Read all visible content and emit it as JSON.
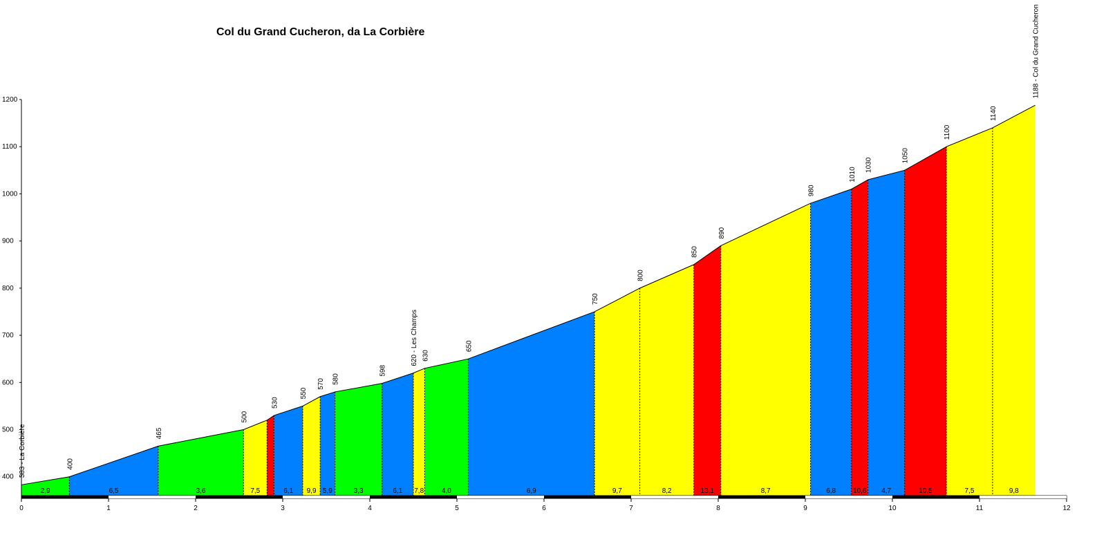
{
  "chart_data": {
    "type": "area",
    "title": "Col du Grand Cucheron, da La Corbière",
    "xlabel": "",
    "ylabel": "",
    "xlim": [
      0,
      12
    ],
    "ylim": [
      360,
      1200
    ],
    "x_ticks": [
      0,
      1,
      2,
      3,
      4,
      5,
      6,
      7,
      8,
      9,
      10,
      11,
      12
    ],
    "y_ticks": [
      400,
      500,
      600,
      700,
      800,
      900,
      1000,
      1100,
      1200
    ],
    "grid": false,
    "legend": "none",
    "colors": {
      "green": "#00ff00",
      "blue": "#0080ff",
      "yellow": "#ffff00",
      "red": "#ff0000",
      "outline": "#000000"
    },
    "profile_points": [
      {
        "x": 0.0,
        "y": 383,
        "label": "383 - La Corbière"
      },
      {
        "x": 0.55,
        "y": 400,
        "label": "400"
      },
      {
        "x": 1.57,
        "y": 465,
        "label": "465"
      },
      {
        "x": 2.55,
        "y": 500,
        "label": "500"
      },
      {
        "x": 2.82,
        "y": 520,
        "label": ""
      },
      {
        "x": 2.9,
        "y": 530,
        "label": "530"
      },
      {
        "x": 3.23,
        "y": 550,
        "label": "550"
      },
      {
        "x": 3.43,
        "y": 570,
        "label": "570"
      },
      {
        "x": 3.6,
        "y": 580,
        "label": "580"
      },
      {
        "x": 4.14,
        "y": 598,
        "label": "598"
      },
      {
        "x": 4.5,
        "y": 620,
        "label": "620 - Les Champs"
      },
      {
        "x": 4.63,
        "y": 630,
        "label": "630"
      },
      {
        "x": 5.13,
        "y": 650,
        "label": "650"
      },
      {
        "x": 6.58,
        "y": 750,
        "label": "750"
      },
      {
        "x": 7.1,
        "y": 800,
        "label": "800"
      },
      {
        "x": 7.72,
        "y": 850,
        "label": "850"
      },
      {
        "x": 8.03,
        "y": 890,
        "label": "890"
      },
      {
        "x": 9.06,
        "y": 980,
        "label": "980"
      },
      {
        "x": 9.53,
        "y": 1010,
        "label": "1010"
      },
      {
        "x": 9.72,
        "y": 1030,
        "label": "1030"
      },
      {
        "x": 10.14,
        "y": 1050,
        "label": "1050"
      },
      {
        "x": 10.62,
        "y": 1100,
        "label": "1100"
      },
      {
        "x": 11.15,
        "y": 1140,
        "label": "1140"
      },
      {
        "x": 11.64,
        "y": 1188,
        "label": "1188 - Col du Grand Cucheron"
      }
    ],
    "segments": [
      {
        "grade": "2,9",
        "color": "green"
      },
      {
        "grade": "6,5",
        "color": "blue"
      },
      {
        "grade": "3,6",
        "color": "green"
      },
      {
        "grade": "7,5",
        "color": "yellow"
      },
      {
        "grade": "",
        "color": "red"
      },
      {
        "grade": "6,1",
        "color": "blue"
      },
      {
        "grade": "9,9",
        "color": "yellow"
      },
      {
        "grade": "5,9",
        "color": "blue"
      },
      {
        "grade": "3,3",
        "color": "green"
      },
      {
        "grade": "6,1",
        "color": "blue"
      },
      {
        "grade": "7,8",
        "color": "yellow"
      },
      {
        "grade": "4,0",
        "color": "green"
      },
      {
        "grade": "6,9",
        "color": "blue"
      },
      {
        "grade": "9,7",
        "color": "yellow"
      },
      {
        "grade": "8,2",
        "color": "yellow"
      },
      {
        "grade": "13,1",
        "color": "red"
      },
      {
        "grade": "8,7",
        "color": "yellow"
      },
      {
        "grade": "6,8",
        "color": "blue"
      },
      {
        "grade": "10,6",
        "color": "red"
      },
      {
        "grade": "4,7",
        "color": "blue"
      },
      {
        "grade": "10,5",
        "color": "red"
      },
      {
        "grade": "7,5",
        "color": "yellow"
      },
      {
        "grade": "9,8",
        "color": "yellow"
      }
    ],
    "km_bar": {
      "colors": [
        "#000000",
        "#ffffff"
      ],
      "step_km": 0.5
    }
  }
}
